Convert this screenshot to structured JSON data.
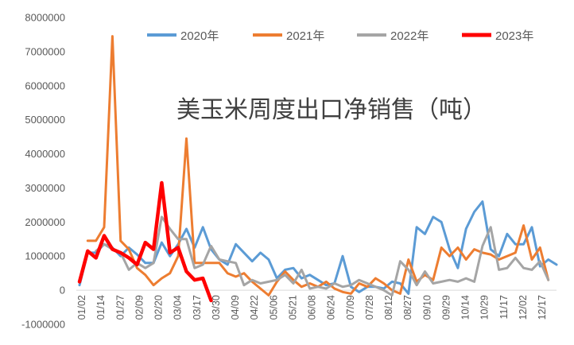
{
  "chart_data": {
    "type": "line",
    "title": "美玉米周度出口净销售（吨）",
    "xlabel": "",
    "ylabel": "",
    "ylim": [
      -1000000,
      8000000
    ],
    "yticks": [
      -1000000,
      0,
      1000000,
      2000000,
      3000000,
      4000000,
      5000000,
      6000000,
      7000000,
      8000000
    ],
    "ytick_labels": [
      "-1000000",
      "0",
      "1000000",
      "2000000",
      "3000000",
      "4000000",
      "5000000",
      "6000000",
      "7000000",
      "8000000"
    ],
    "xtick_labels": [
      "01/02",
      "01/14",
      "01/27",
      "02/09",
      "02/20",
      "03/04",
      "03/17",
      "03/30",
      "04/09",
      "04/22",
      "05/06",
      "05/21",
      "06/08",
      "06/24",
      "07/09",
      "07/28",
      "08/12",
      "08/27",
      "09/10",
      "09/29",
      "10/14",
      "10/29",
      "11/17",
      "12/02",
      "12/17"
    ],
    "grid": false,
    "legend_position": "top",
    "series": [
      {
        "name": "2020年",
        "color": "#5B9BD5",
        "values": [
          150000,
          1100000,
          1100000,
          1350000,
          1250000,
          1000000,
          1250000,
          1050000,
          800000,
          800000,
          1400000,
          1000000,
          1350000,
          1800000,
          1250000,
          1850000,
          1200000,
          900000,
          750000,
          1350000,
          1100000,
          850000,
          1100000,
          900000,
          350000,
          600000,
          650000,
          350000,
          450000,
          300000,
          150000,
          200000,
          1000000,
          100000,
          -50000,
          100000,
          100000,
          50000,
          250000,
          200000,
          -100000,
          1850000,
          1650000,
          2150000,
          2000000,
          1200000,
          650000,
          1800000,
          2300000,
          2600000,
          1200000,
          1000000,
          1650000,
          1350000,
          1350000,
          1850000,
          700000,
          900000,
          750000
        ]
      },
      {
        "name": "2021年",
        "color": "#ED7D31",
        "values": [
          null,
          1450000,
          1450000,
          1850000,
          7450000,
          1450000,
          1200000,
          650000,
          450000,
          150000,
          350000,
          500000,
          1000000,
          4450000,
          800000,
          800000,
          800000,
          800000,
          500000,
          400000,
          500000,
          250000,
          50000,
          -150000,
          250000,
          550000,
          300000,
          100000,
          200000,
          100000,
          250000,
          50000,
          -50000,
          -100000,
          200000,
          100000,
          350000,
          200000,
          0,
          -100000,
          900000,
          250000,
          450000,
          300000,
          1250000,
          1000000,
          1250000,
          900000,
          1200000,
          1100000,
          1050000,
          900000,
          1000000,
          1100000,
          1900000,
          900000,
          1250000,
          300000
        ]
      },
      {
        "name": "2022年",
        "color": "#A5A5A5",
        "values": [
          null,
          null,
          1150000,
          1350000,
          1200000,
          1100000,
          600000,
          800000,
          650000,
          800000,
          2150000,
          1800000,
          1500000,
          1500000,
          650000,
          750000,
          1300000,
          900000,
          850000,
          800000,
          150000,
          300000,
          200000,
          250000,
          300000,
          450000,
          200000,
          600000,
          50000,
          100000,
          50000,
          200000,
          100000,
          150000,
          300000,
          200000,
          100000,
          0,
          -150000,
          850000,
          600000,
          150000,
          550000,
          200000,
          250000,
          300000,
          250000,
          350000,
          250000,
          1300000,
          1850000,
          600000,
          650000,
          950000,
          650000,
          600000,
          850000,
          300000
        ]
      },
      {
        "name": "2023年",
        "color": "#FF0000",
        "values": [
          250000,
          1150000,
          950000,
          1600000,
          1200000,
          1100000,
          950000,
          750000,
          1400000,
          1200000,
          3150000,
          1100000,
          1250000,
          550000,
          300000,
          350000,
          -300000
        ]
      }
    ]
  }
}
